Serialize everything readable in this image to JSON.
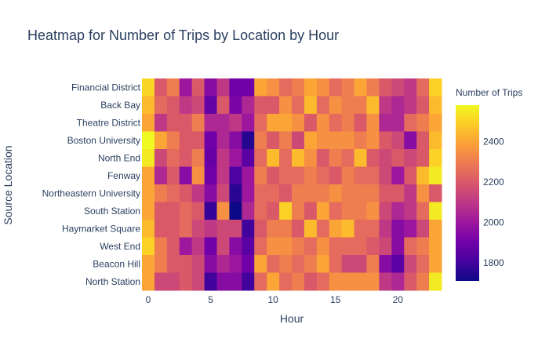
{
  "chart_data": {
    "type": "heatmap",
    "title": "Heatmap for Number of Trips by Location by Hour",
    "xlabel": "Hour",
    "ylabel": "Source Location",
    "colorbar_title": "Number of Trips",
    "x_range": [
      -0.5,
      23.5
    ],
    "x_ticks": [
      0,
      5,
      10,
      15,
      20
    ],
    "z_range": [
      1710,
      2580
    ],
    "colorbar_ticks": [
      1800,
      2000,
      2200,
      2400
    ],
    "colorscale": [
      "#0d0887",
      "#46039f",
      "#7201a8",
      "#9c179e",
      "#bd3786",
      "#d8576b",
      "#ed7953",
      "#fb9f3a",
      "#fdca26",
      "#f0f921"
    ],
    "x": [
      0,
      1,
      2,
      3,
      4,
      5,
      6,
      7,
      8,
      9,
      10,
      11,
      12,
      13,
      14,
      15,
      16,
      17,
      18,
      19,
      20,
      21,
      22,
      23
    ],
    "y": [
      "Financial District",
      "Back Bay",
      "Theatre District",
      "Boston University",
      "North End",
      "Fenway",
      "Northeastern University",
      "South Station",
      "Haymarket Square",
      "West End",
      "Beacon Hill",
      "North Station"
    ],
    "z": [
      [
        2510,
        2200,
        2300,
        2000,
        2200,
        1950,
        2100,
        1900,
        1900,
        2400,
        2350,
        2250,
        2300,
        2400,
        2350,
        2250,
        2300,
        2400,
        2300,
        2200,
        2150,
        2100,
        2250,
        2500
      ],
      [
        2450,
        2250,
        2200,
        2100,
        2150,
        1870,
        2200,
        1920,
        2050,
        2200,
        2200,
        2350,
        2250,
        2450,
        2250,
        2350,
        2300,
        2300,
        2450,
        2100,
        2050,
        2100,
        2200,
        2450
      ],
      [
        2400,
        2100,
        2200,
        2200,
        2300,
        2050,
        2050,
        2100,
        2000,
        2250,
        2400,
        2400,
        2350,
        2200,
        2350,
        2250,
        2300,
        2200,
        2350,
        2050,
        2050,
        2250,
        2300,
        2400
      ],
      [
        2580,
        2400,
        2300,
        2200,
        2200,
        1900,
        2050,
        1950,
        1750,
        2300,
        2200,
        2300,
        2150,
        2400,
        2350,
        2350,
        2350,
        2300,
        2350,
        2200,
        2150,
        1950,
        2200,
        2450
      ],
      [
        2550,
        2150,
        2250,
        2200,
        2300,
        1880,
        2100,
        2000,
        1850,
        2250,
        2450,
        2250,
        2450,
        2350,
        2200,
        2300,
        2250,
        2450,
        2200,
        2150,
        2200,
        2150,
        2200,
        2500
      ],
      [
        2400,
        2050,
        2200,
        1950,
        2350,
        1900,
        2100,
        1820,
        2000,
        2300,
        2200,
        2250,
        2250,
        2300,
        2250,
        2200,
        2300,
        2250,
        2250,
        2150,
        2000,
        2200,
        2450,
        2550
      ],
      [
        2400,
        2300,
        2250,
        2200,
        2100,
        1950,
        2150,
        1760,
        2000,
        2250,
        2250,
        2200,
        2300,
        2300,
        2300,
        2350,
        2300,
        2300,
        2300,
        2200,
        2200,
        2100,
        2350,
        2200
      ],
      [
        2400,
        2200,
        2200,
        2250,
        2200,
        1780,
        2350,
        1710,
        2050,
        2250,
        2200,
        2500,
        2300,
        2200,
        2400,
        2250,
        2300,
        2300,
        2350,
        2150,
        2050,
        2100,
        2250,
        2550
      ],
      [
        2450,
        2200,
        2200,
        2250,
        2150,
        2100,
        2150,
        2150,
        1800,
        2200,
        2300,
        2300,
        2200,
        2450,
        2250,
        2400,
        2450,
        2250,
        2250,
        2100,
        1950,
        2000,
        2150,
        2400
      ],
      [
        2500,
        2300,
        2200,
        2000,
        2100,
        1900,
        2150,
        1950,
        1850,
        2250,
        2350,
        2350,
        2300,
        2250,
        2350,
        2250,
        2250,
        2250,
        2200,
        2150,
        1950,
        2250,
        2300,
        2400
      ],
      [
        2400,
        2300,
        2200,
        2200,
        2150,
        1950,
        2050,
        2000,
        1900,
        2400,
        2250,
        2300,
        2250,
        2300,
        2400,
        2250,
        2150,
        2150,
        2300,
        1950,
        1850,
        2150,
        2250,
        2400
      ],
      [
        2400,
        2150,
        2150,
        2200,
        2150,
        1800,
        1950,
        1950,
        1800,
        2250,
        2400,
        2250,
        2300,
        2200,
        2250,
        2350,
        2350,
        2350,
        2350,
        2100,
        2050,
        2200,
        2300,
        2550
      ]
    ]
  }
}
